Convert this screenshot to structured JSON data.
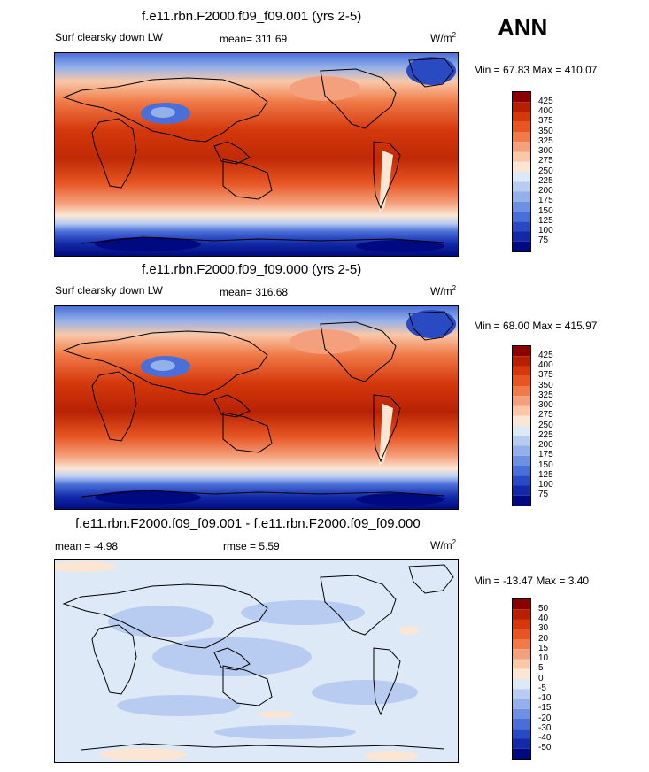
{
  "panels": [
    {
      "title": "f.e11.rbn.F2000.f09_f09.001 (yrs 2-5)",
      "left_label": "Surf clearsky down LW",
      "center_label": "mean= 311.69",
      "units": "W/m",
      "units_sup": "2",
      "minmax": "Min =  67.83 Max = 410.07"
    },
    {
      "title": "f.e11.rbn.F2000.f09_f09.000 (yrs 2-5)",
      "left_label": "Surf clearsky down LW",
      "center_label": "mean= 316.68",
      "units": "W/m",
      "units_sup": "2",
      "minmax": "Min =  68.00 Max = 415.97"
    },
    {
      "title": "f.e11.rbn.F2000.f09_f09.001 - f.e11.rbn.F2000.f09_f09.000",
      "left_label": "mean =  -4.98",
      "center_label": "rmse =   5.59",
      "units": "W/m",
      "units_sup": "2",
      "minmax": "Min = -13.47 Max =   3.40"
    }
  ],
  "season": "ANN",
  "chart_data": [
    {
      "type": "heatmap",
      "title": "f.e11.rbn.F2000.f09_f09.001 (yrs 2-5)",
      "variable": "Surf clearsky down LW",
      "mean": 311.69,
      "min": 67.83,
      "max": 410.07,
      "units": "W/m2",
      "colorbar_levels": [
        "425",
        "400",
        "375",
        "350",
        "325",
        "300",
        "275",
        "250",
        "225",
        "200",
        "175",
        "150",
        "125",
        "100",
        "75"
      ],
      "colorbar_colors": [
        "#8b0000",
        "#b42000",
        "#d4380c",
        "#e65522",
        "#f07a48",
        "#f5a07c",
        "#f9c8a8",
        "#fbe6d4",
        "#dde9f7",
        "#b8ccf2",
        "#93b0ea",
        "#6d90e2",
        "#4a6fd8",
        "#2a4ac4",
        "#122aa8",
        "#000a80"
      ]
    },
    {
      "type": "heatmap",
      "title": "f.e11.rbn.F2000.f09_f09.000 (yrs 2-5)",
      "variable": "Surf clearsky down LW",
      "mean": 316.68,
      "min": 68.0,
      "max": 415.97,
      "units": "W/m2",
      "colorbar_levels": [
        "425",
        "400",
        "375",
        "350",
        "325",
        "300",
        "275",
        "250",
        "225",
        "200",
        "175",
        "150",
        "125",
        "100",
        "75"
      ],
      "colorbar_colors": [
        "#8b0000",
        "#b42000",
        "#d4380c",
        "#e65522",
        "#f07a48",
        "#f5a07c",
        "#f9c8a8",
        "#fbe6d4",
        "#dde9f7",
        "#b8ccf2",
        "#93b0ea",
        "#6d90e2",
        "#4a6fd8",
        "#2a4ac4",
        "#122aa8",
        "#000a80"
      ]
    },
    {
      "type": "heatmap",
      "title": "f.e11.rbn.F2000.f09_f09.001 - f.e11.rbn.F2000.f09_f09.000",
      "mean": -4.98,
      "rmse": 5.59,
      "min": -13.47,
      "max": 3.4,
      "units": "W/m2",
      "colorbar_levels": [
        "50",
        "40",
        "30",
        "20",
        "15",
        "10",
        "5",
        "0",
        "-5",
        "-10",
        "-15",
        "-20",
        "-30",
        "-40",
        "-50"
      ],
      "colorbar_colors": [
        "#8b0000",
        "#b42000",
        "#d4380c",
        "#e65522",
        "#f07a48",
        "#f5a07c",
        "#f9c8a8",
        "#fbe6d4",
        "#dde9f7",
        "#b8ccf2",
        "#93b0ea",
        "#6d90e2",
        "#4a6fd8",
        "#2a4ac4",
        "#122aa8",
        "#000a80"
      ]
    }
  ]
}
